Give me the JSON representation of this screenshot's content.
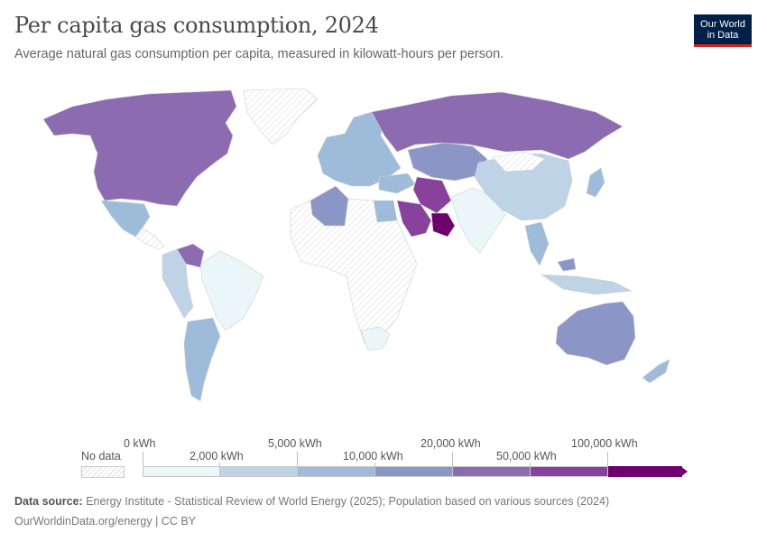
{
  "title": "Per capita gas consumption, 2024",
  "subtitle": "Average natural gas consumption per capita, measured in kilowatt-hours per person.",
  "logo": {
    "line1": "Our World",
    "line2": "in Data"
  },
  "legend": {
    "no_data_label": "No data",
    "tick_labels_upper": [
      "0 kWh",
      "5,000 kWh",
      "20,000 kWh",
      "100,000 kWh"
    ],
    "tick_labels_lower": [
      "2,000 kWh",
      "10,000 kWh",
      "50,000 kWh"
    ],
    "bin_colors": [
      "#eaf6f8",
      "#bfd3e6",
      "#9ebcda",
      "#8c96c6",
      "#8c6bb1",
      "#88419d",
      "#6e016b"
    ]
  },
  "colors": {
    "land_nodata": "#ffffff",
    "hatch": "#dcdcdc",
    "border": "#cfcfcf"
  },
  "map_data": {
    "North America (USA, Canada)": "#8c6bb1",
    "Greenland": "no data",
    "Mexico": "#9ebcda",
    "Russia": "#8c6bb1",
    "Kazakhstan, Uzbekistan, Turkmenistan": "#8c96c6",
    "Iran": "#88419d",
    "Saudi Arabia": "#88419d",
    "Qatar, UAE": "#6e016b",
    "China": "#bfd3e6",
    "India": "#eaf6f8",
    "Australia": "#8c96c6",
    "Algeria": "#8c96c6",
    "Egypt": "#9ebcda",
    "Venezuela": "#8c6bb1",
    "Argentina": "#9ebcda",
    "Brazil": "#eaf6f8",
    "Europe": "#9ebcda",
    "South Africa": "#eaf6f8",
    "Japan": "#9ebcda",
    "Malaysia": "#8c96c6",
    "Thailand": "#9ebcda",
    "Africa (most)": "no data"
  },
  "footer": {
    "source_label": "Data source:",
    "source_text": "Energy Institute - Statistical Review of World Energy (2025); Population based on various sources (2024)",
    "credit": "OurWorldinData.org/energy | CC BY"
  }
}
